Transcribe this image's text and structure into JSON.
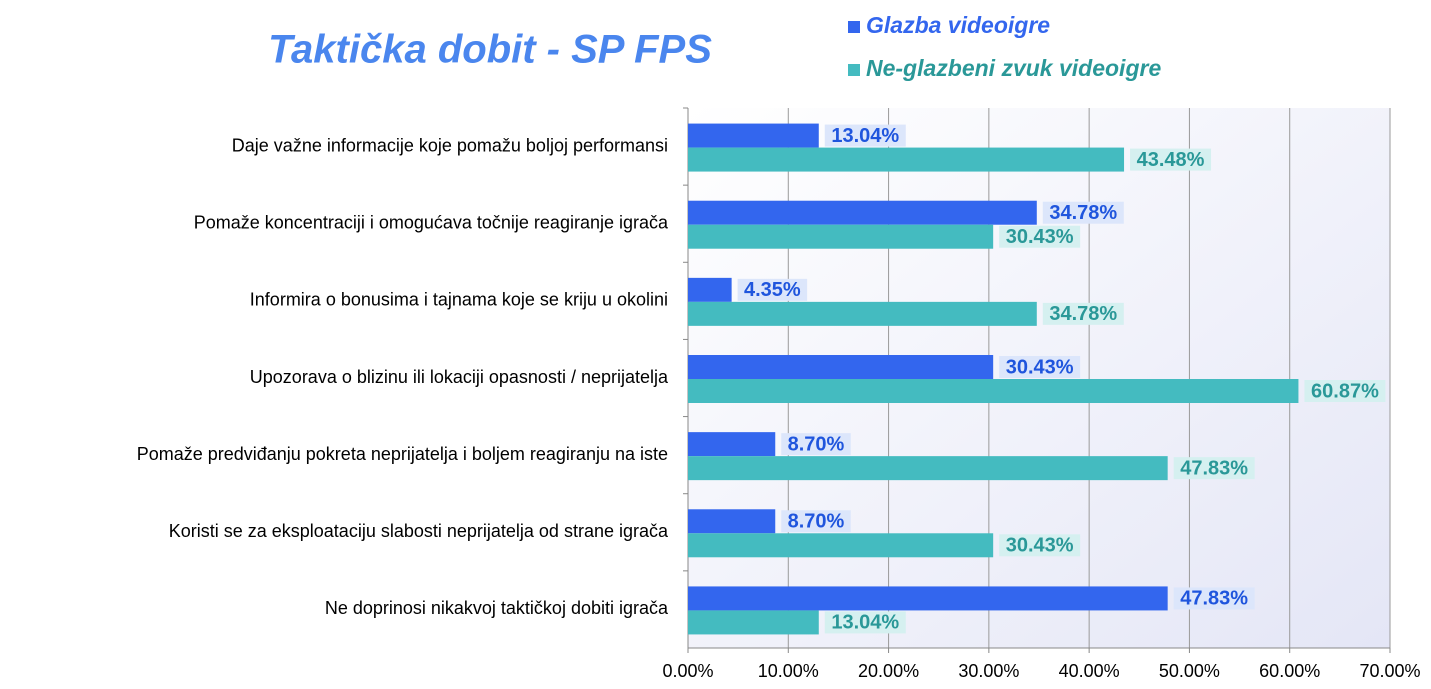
{
  "chart_data": {
    "type": "bar",
    "orientation": "horizontal",
    "title": "Taktička dobit - SP FPS",
    "categories": [
      "Daje važne informacije koje pomažu boljoj performansi",
      "Pomaže koncentraciji i omogućava točnije reagiranje igrača",
      "Informira o bonusima i tajnama koje se kriju u okolini",
      "Upozorava o blizinu ili lokaciji opasnosti / neprijatelja",
      "Pomaže predviđanju pokreta neprijatelja i boljem reagiranju na iste",
      "Koristi se za eksploataciju slabosti neprijatelja od strane igrača",
      "Ne doprinosi nikakvoj taktičkoj dobiti igrača"
    ],
    "series": [
      {
        "name": "Glazba videoigre",
        "color": "#3366ee",
        "values": [
          13.04,
          34.78,
          4.35,
          30.43,
          8.7,
          8.7,
          47.83
        ],
        "value_labels": [
          "13.04%",
          "34.78%",
          "4.35%",
          "30.43%",
          "8.70%",
          "8.70%",
          "47.83%"
        ]
      },
      {
        "name": "Ne-glazbeni zvuk videoigre",
        "color": "#44bbc0",
        "values": [
          43.48,
          30.43,
          34.78,
          60.87,
          47.83,
          30.43,
          13.04
        ],
        "value_labels": [
          "43.48%",
          "30.43%",
          "34.78%",
          "60.87%",
          "47.83%",
          "30.43%",
          "13.04%"
        ]
      }
    ],
    "xlim": [
      0,
      70
    ],
    "xticks": [
      {
        "value": 0,
        "label": "0.00%"
      },
      {
        "value": 10,
        "label": "10.00%"
      },
      {
        "value": 20,
        "label": "20.00%"
      },
      {
        "value": 30,
        "label": "30.00%"
      },
      {
        "value": 40,
        "label": "40.00%"
      },
      {
        "value": 50,
        "label": "50.00%"
      },
      {
        "value": 60,
        "label": "60.00%"
      },
      {
        "value": 70,
        "label": "70.00%"
      }
    ],
    "grid": true,
    "legend": "top-right"
  }
}
